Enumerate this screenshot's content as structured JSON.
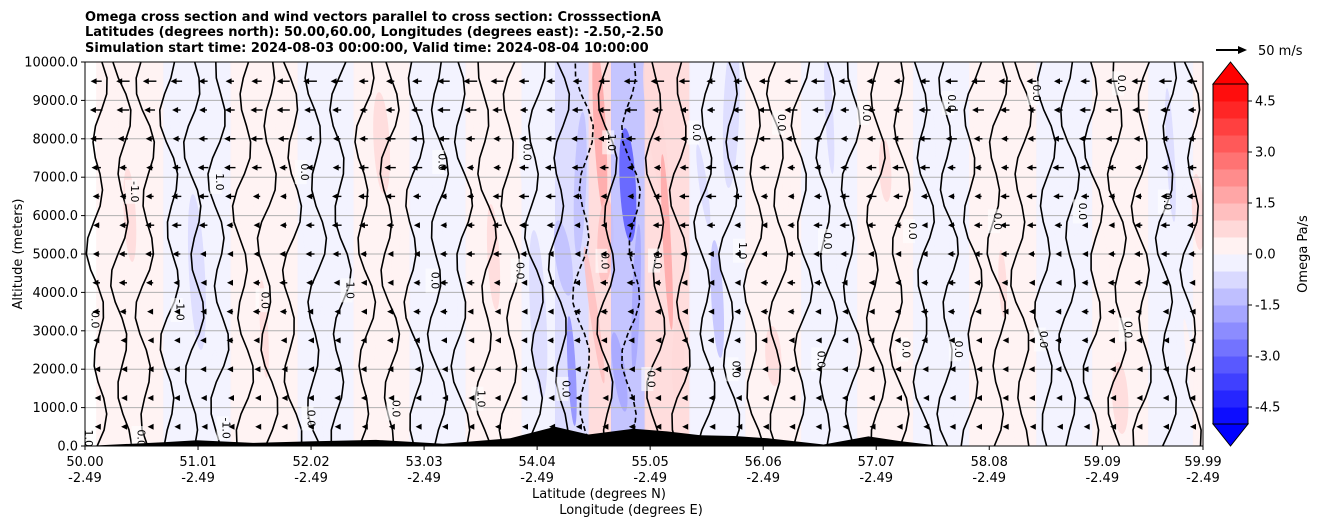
{
  "chart_data": {
    "type": "heatmap",
    "title_lines": [
      "Omega cross section and wind vectors parallel to cross section: CrosssectionA",
      "Latitudes (degrees north): 50.00,60.00, Longitudes (degrees east): -2.50,-2.50",
      "Simulation start time: 2024-08-03 00:00:00, Valid time: 2024-08-04 10:00:00"
    ],
    "ylabel": "Altitude (meters)",
    "xlabel_lines": [
      "Latitude (degrees N)",
      "Longitude (degrees E)"
    ],
    "ylim": [
      0,
      10000
    ],
    "y_ticks": [
      "0.0",
      "1000.0",
      "2000.0",
      "3000.0",
      "4000.0",
      "5000.0",
      "6000.0",
      "7000.0",
      "8000.0",
      "9000.0",
      "10000.0"
    ],
    "x_ticks": [
      {
        "lat": "50.00",
        "lon": "-2.49"
      },
      {
        "lat": "51.01",
        "lon": "-2.49"
      },
      {
        "lat": "52.02",
        "lon": "-2.49"
      },
      {
        "lat": "53.03",
        "lon": "-2.49"
      },
      {
        "lat": "54.04",
        "lon": "-2.49"
      },
      {
        "lat": "55.05",
        "lon": "-2.49"
      },
      {
        "lat": "56.06",
        "lon": "-2.49"
      },
      {
        "lat": "57.07",
        "lon": "-2.49"
      },
      {
        "lat": "58.08",
        "lon": "-2.49"
      },
      {
        "lat": "59.09",
        "lon": "-2.49"
      },
      {
        "lat": "59.99",
        "lon": "-2.49"
      }
    ],
    "colorbar": {
      "label": "Omega Pa/s",
      "range": [
        -5,
        5
      ],
      "ticks": [
        "-4.5",
        "-3.0",
        "-1.5",
        "0.0",
        "1.5",
        "3.0",
        "4.5"
      ],
      "tick_values": [
        -4.5,
        -3.0,
        -1.5,
        0.0,
        1.5,
        3.0,
        4.5
      ],
      "levels": 20,
      "colormap": "bwr"
    },
    "quiver_key": {
      "label": "50 m/s",
      "speed": 50
    },
    "contour_levels": [
      -1.0,
      0.0,
      1.0
    ],
    "contour_labels": [
      "0.0",
      "1.0",
      "-1.0"
    ],
    "omega_bands": [
      {
        "lat": 50.1,
        "value": 0.6
      },
      {
        "lat": 50.7,
        "value": -0.5
      },
      {
        "lat": 51.3,
        "value": 0.5
      },
      {
        "lat": 51.9,
        "value": -0.3
      },
      {
        "lat": 52.4,
        "value": 0.6
      },
      {
        "lat": 52.9,
        "value": -0.4
      },
      {
        "lat": 53.4,
        "value": 0.5
      },
      {
        "lat": 53.9,
        "value": -0.8
      },
      {
        "lat": 54.2,
        "value": -2.0
      },
      {
        "lat": 54.5,
        "value": 1.8
      },
      {
        "lat": 54.7,
        "value": -3.0
      },
      {
        "lat": 55.0,
        "value": 1.5
      },
      {
        "lat": 55.4,
        "value": -1.2
      },
      {
        "lat": 55.9,
        "value": 0.8
      },
      {
        "lat": 56.4,
        "value": -0.5
      },
      {
        "lat": 56.9,
        "value": 0.5
      },
      {
        "lat": 57.4,
        "value": -0.4
      },
      {
        "lat": 57.9,
        "value": 0.6
      },
      {
        "lat": 58.5,
        "value": -0.3
      },
      {
        "lat": 59.0,
        "value": 0.8
      },
      {
        "lat": 59.5,
        "value": -0.6
      },
      {
        "lat": 59.9,
        "value": 0.7
      }
    ],
    "wind_u_ms": -30,
    "terrain": [
      {
        "lat": 50.0,
        "alt": 0
      },
      {
        "lat": 50.7,
        "alt": 100
      },
      {
        "lat": 51.0,
        "alt": 150
      },
      {
        "lat": 51.5,
        "alt": 80
      },
      {
        "lat": 52.0,
        "alt": 120
      },
      {
        "lat": 52.6,
        "alt": 160
      },
      {
        "lat": 53.2,
        "alt": 60
      },
      {
        "lat": 53.8,
        "alt": 200
      },
      {
        "lat": 54.2,
        "alt": 500
      },
      {
        "lat": 54.5,
        "alt": 300
      },
      {
        "lat": 54.9,
        "alt": 450
      },
      {
        "lat": 55.2,
        "alt": 380
      },
      {
        "lat": 55.5,
        "alt": 280
      },
      {
        "lat": 55.8,
        "alt": 260
      },
      {
        "lat": 56.1,
        "alt": 200
      },
      {
        "lat": 56.6,
        "alt": 40
      },
      {
        "lat": 57.0,
        "alt": 250
      },
      {
        "lat": 57.3,
        "alt": 120
      },
      {
        "lat": 57.6,
        "alt": 20
      },
      {
        "lat": 58.0,
        "alt": 0
      },
      {
        "lat": 59.99,
        "alt": 0
      }
    ]
  }
}
